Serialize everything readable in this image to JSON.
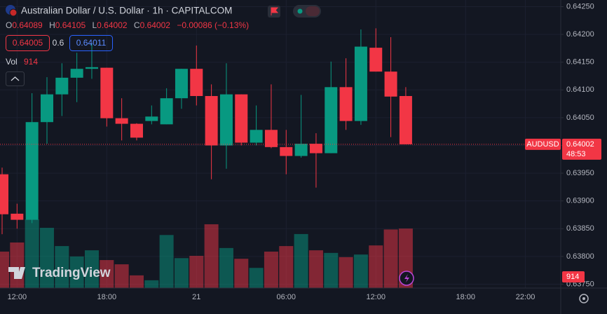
{
  "chart_data": {
    "type": "candlestick",
    "title": "Australian Dollar / U.S. Dollar · 1h · CAPITALCOM",
    "legend_letters": [
      "O",
      "H",
      "L",
      "C"
    ],
    "change": {
      "value": -0.00086,
      "label": "−0.00086"
    },
    "change_pct": {
      "value": -0.13,
      "label": "(−0.13%)"
    },
    "bid": 0.64005,
    "spread": 0.6,
    "ask": 0.64011,
    "volume_title": "Vol",
    "symbol": "AUDUSD",
    "countdown": "48:53",
    "watermark": "TradingView",
    "up_color": "#089981",
    "down_color": "#f23645",
    "grid": true,
    "categories": [
      null,
      "12:00",
      null,
      null,
      null,
      null,
      null,
      "18:00",
      null,
      null,
      null,
      null,
      null,
      "21",
      null,
      null,
      null,
      null,
      null,
      "06:00",
      null,
      null,
      null,
      null,
      null,
      "12:00",
      null,
      null,
      null,
      null,
      null,
      "18:00",
      null,
      null,
      null,
      "22:00"
    ],
    "open": [
      0.63948,
      0.63877,
      0.63866,
      0.64042,
      0.64092,
      0.64122,
      0.64138,
      0.6414,
      0.64049,
      0.64039,
      0.64044,
      0.64038,
      0.64085,
      0.64138,
      0.64089,
      0.64,
      0.64092,
      0.64005,
      0.64028,
      0.63997,
      0.63981,
      0.64003,
      0.63986,
      0.64105,
      0.64044,
      0.64176,
      0.64133,
      0.64089,
      null,
      null,
      null,
      null,
      null,
      null,
      null,
      null
    ],
    "high": [
      0.6396,
      0.63895,
      0.64094,
      0.64123,
      0.64148,
      0.64167,
      0.64184,
      0.6414,
      0.64085,
      0.6404,
      0.64072,
      0.64103,
      0.64138,
      0.6418,
      0.6411,
      0.64148,
      0.64092,
      0.64072,
      0.6411,
      0.64028,
      0.64091,
      0.64022,
      0.64151,
      0.64157,
      0.64209,
      0.64211,
      0.64195,
      0.64105,
      null,
      null,
      null,
      null,
      null,
      null,
      null,
      null
    ],
    "low": [
      0.6384,
      0.6385,
      0.6386,
      0.64003,
      0.64053,
      0.64078,
      0.6412,
      0.64034,
      0.64009,
      0.64009,
      0.64038,
      0.64038,
      0.64066,
      0.64072,
      0.63939,
      0.63958,
      0.64,
      0.64,
      0.63995,
      0.63948,
      0.63978,
      0.63924,
      0.63986,
      0.64028,
      0.64037,
      0.64133,
      0.64015,
      0.64002,
      null,
      null,
      null,
      null,
      null,
      null,
      null,
      null
    ],
    "close": [
      0.63876,
      0.63866,
      0.64042,
      0.64092,
      0.64122,
      0.64138,
      0.64141,
      0.64049,
      0.64039,
      0.64014,
      0.64052,
      0.64085,
      0.64138,
      0.64089,
      0.64,
      0.64092,
      0.64005,
      0.64028,
      0.63997,
      0.63981,
      0.64003,
      0.63986,
      0.64105,
      0.64044,
      0.64178,
      0.64133,
      0.64088,
      0.64002,
      null,
      null,
      null,
      null,
      null,
      null,
      null,
      null
    ],
    "volume": [
      560,
      700,
      1055,
      925,
      645,
      485,
      580,
      430,
      365,
      195,
      120,
      815,
      460,
      495,
      980,
      615,
      450,
      310,
      560,
      645,
      830,
      580,
      540,
      475,
      515,
      655,
      900,
      914,
      null,
      null,
      null,
      null,
      null,
      null,
      null,
      null
    ],
    "ylim": [
      0.63743,
      0.64262
    ],
    "yticks": [
      {
        "value": 0.6425,
        "label": "0.64250"
      },
      {
        "value": 0.642,
        "label": "0.64200"
      },
      {
        "value": 0.6415,
        "label": "0.64150"
      },
      {
        "value": 0.641,
        "label": "0.64100"
      },
      {
        "value": 0.6405,
        "label": "0.64050"
      },
      {
        "value": 0.64,
        "label": "0.64000"
      },
      {
        "value": 0.6395,
        "label": "0.63950"
      },
      {
        "value": 0.639,
        "label": "0.63900"
      },
      {
        "value": 0.6385,
        "label": "0.63850"
      },
      {
        "value": 0.638,
        "label": "0.63800"
      },
      {
        "value": 0.6375,
        "label": "0.63750"
      }
    ]
  }
}
